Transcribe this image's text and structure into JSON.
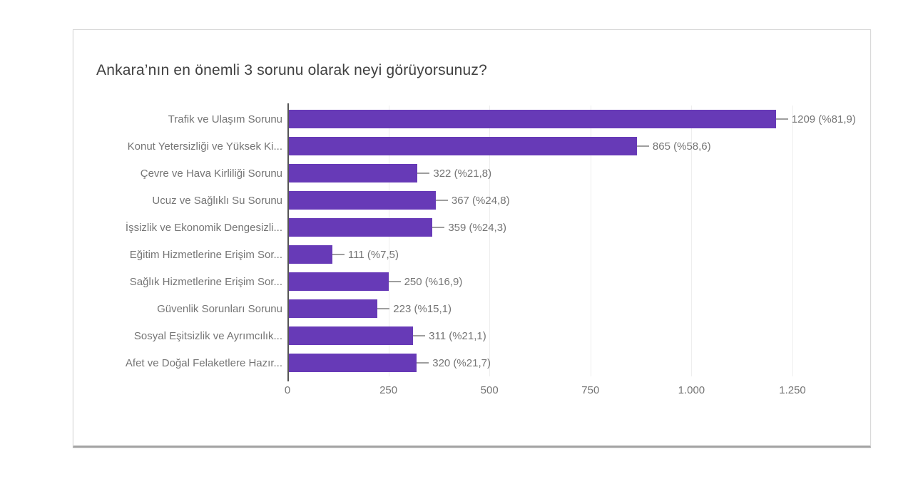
{
  "card": {
    "title": "Ankara’nın en önemli 3 sorunu olarak neyi görüyorsunuz?"
  },
  "chart_data": {
    "type": "bar",
    "orientation": "horizontal",
    "title": "Ankara’nın en önemli 3 sorunu olarak neyi görüyorsunuz?",
    "bar_color": "#673AB7",
    "categories": [
      "Trafik ve Ulaşım Sorunu",
      "Konut Yetersizliği ve Yüksek Ki...",
      "Çevre ve Hava Kirliliği Sorunu",
      "Ucuz ve Sağlıklı Su Sorunu",
      "İşsizlik ve Ekonomik Dengesizli...",
      "Eğitim Hizmetlerine Erişim Sor...",
      "Sağlık Hizmetlerine Erişim Sor...",
      "Güvenlik Sorunları Sorunu",
      "Sosyal Eşitsizlik ve Ayrımcılık...",
      "Afet ve Doğal Felaketlere Hazır..."
    ],
    "values": [
      1209,
      865,
      322,
      367,
      359,
      111,
      250,
      223,
      311,
      320
    ],
    "percentages": [
      81.9,
      58.6,
      21.8,
      24.8,
      24.3,
      7.5,
      16.9,
      15.1,
      21.1,
      21.7
    ],
    "value_labels": [
      "1209 (%81,9)",
      "865 (%58,6)",
      "322 (%21,8)",
      "367 (%24,8)",
      "359 (%24,3)",
      "111 (%7,5)",
      "250 (%16,9)",
      "223 (%15,1)",
      "311 (%21,1)",
      "320 (%21,7)"
    ],
    "xlabel": "",
    "ylabel": "",
    "xlim": [
      0,
      1250
    ],
    "x_ticks": [
      0,
      250,
      500,
      750,
      1000,
      1250
    ],
    "x_tick_labels": [
      "0",
      "250",
      "500",
      "750",
      "1.000",
      "1.250"
    ],
    "grid": true,
    "legend": false
  }
}
